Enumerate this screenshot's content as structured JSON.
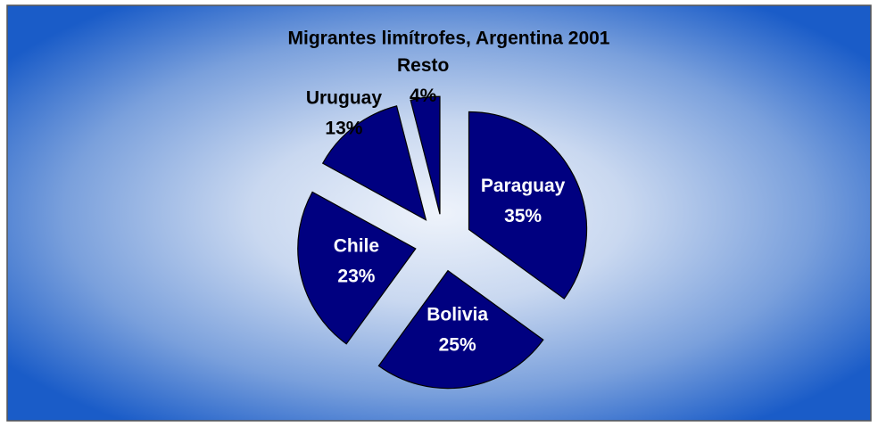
{
  "chart_data": {
    "type": "pie",
    "title": "Migrantes limítrofes, Argentina 2001",
    "categories": [
      "Paraguay",
      "Bolivia",
      "Chile",
      "Uruguay",
      "Resto"
    ],
    "values": [
      35,
      25,
      23,
      13,
      4
    ],
    "value_labels": [
      "35%",
      "25%",
      "23%",
      "13%",
      "4%"
    ],
    "color": "#000080"
  }
}
